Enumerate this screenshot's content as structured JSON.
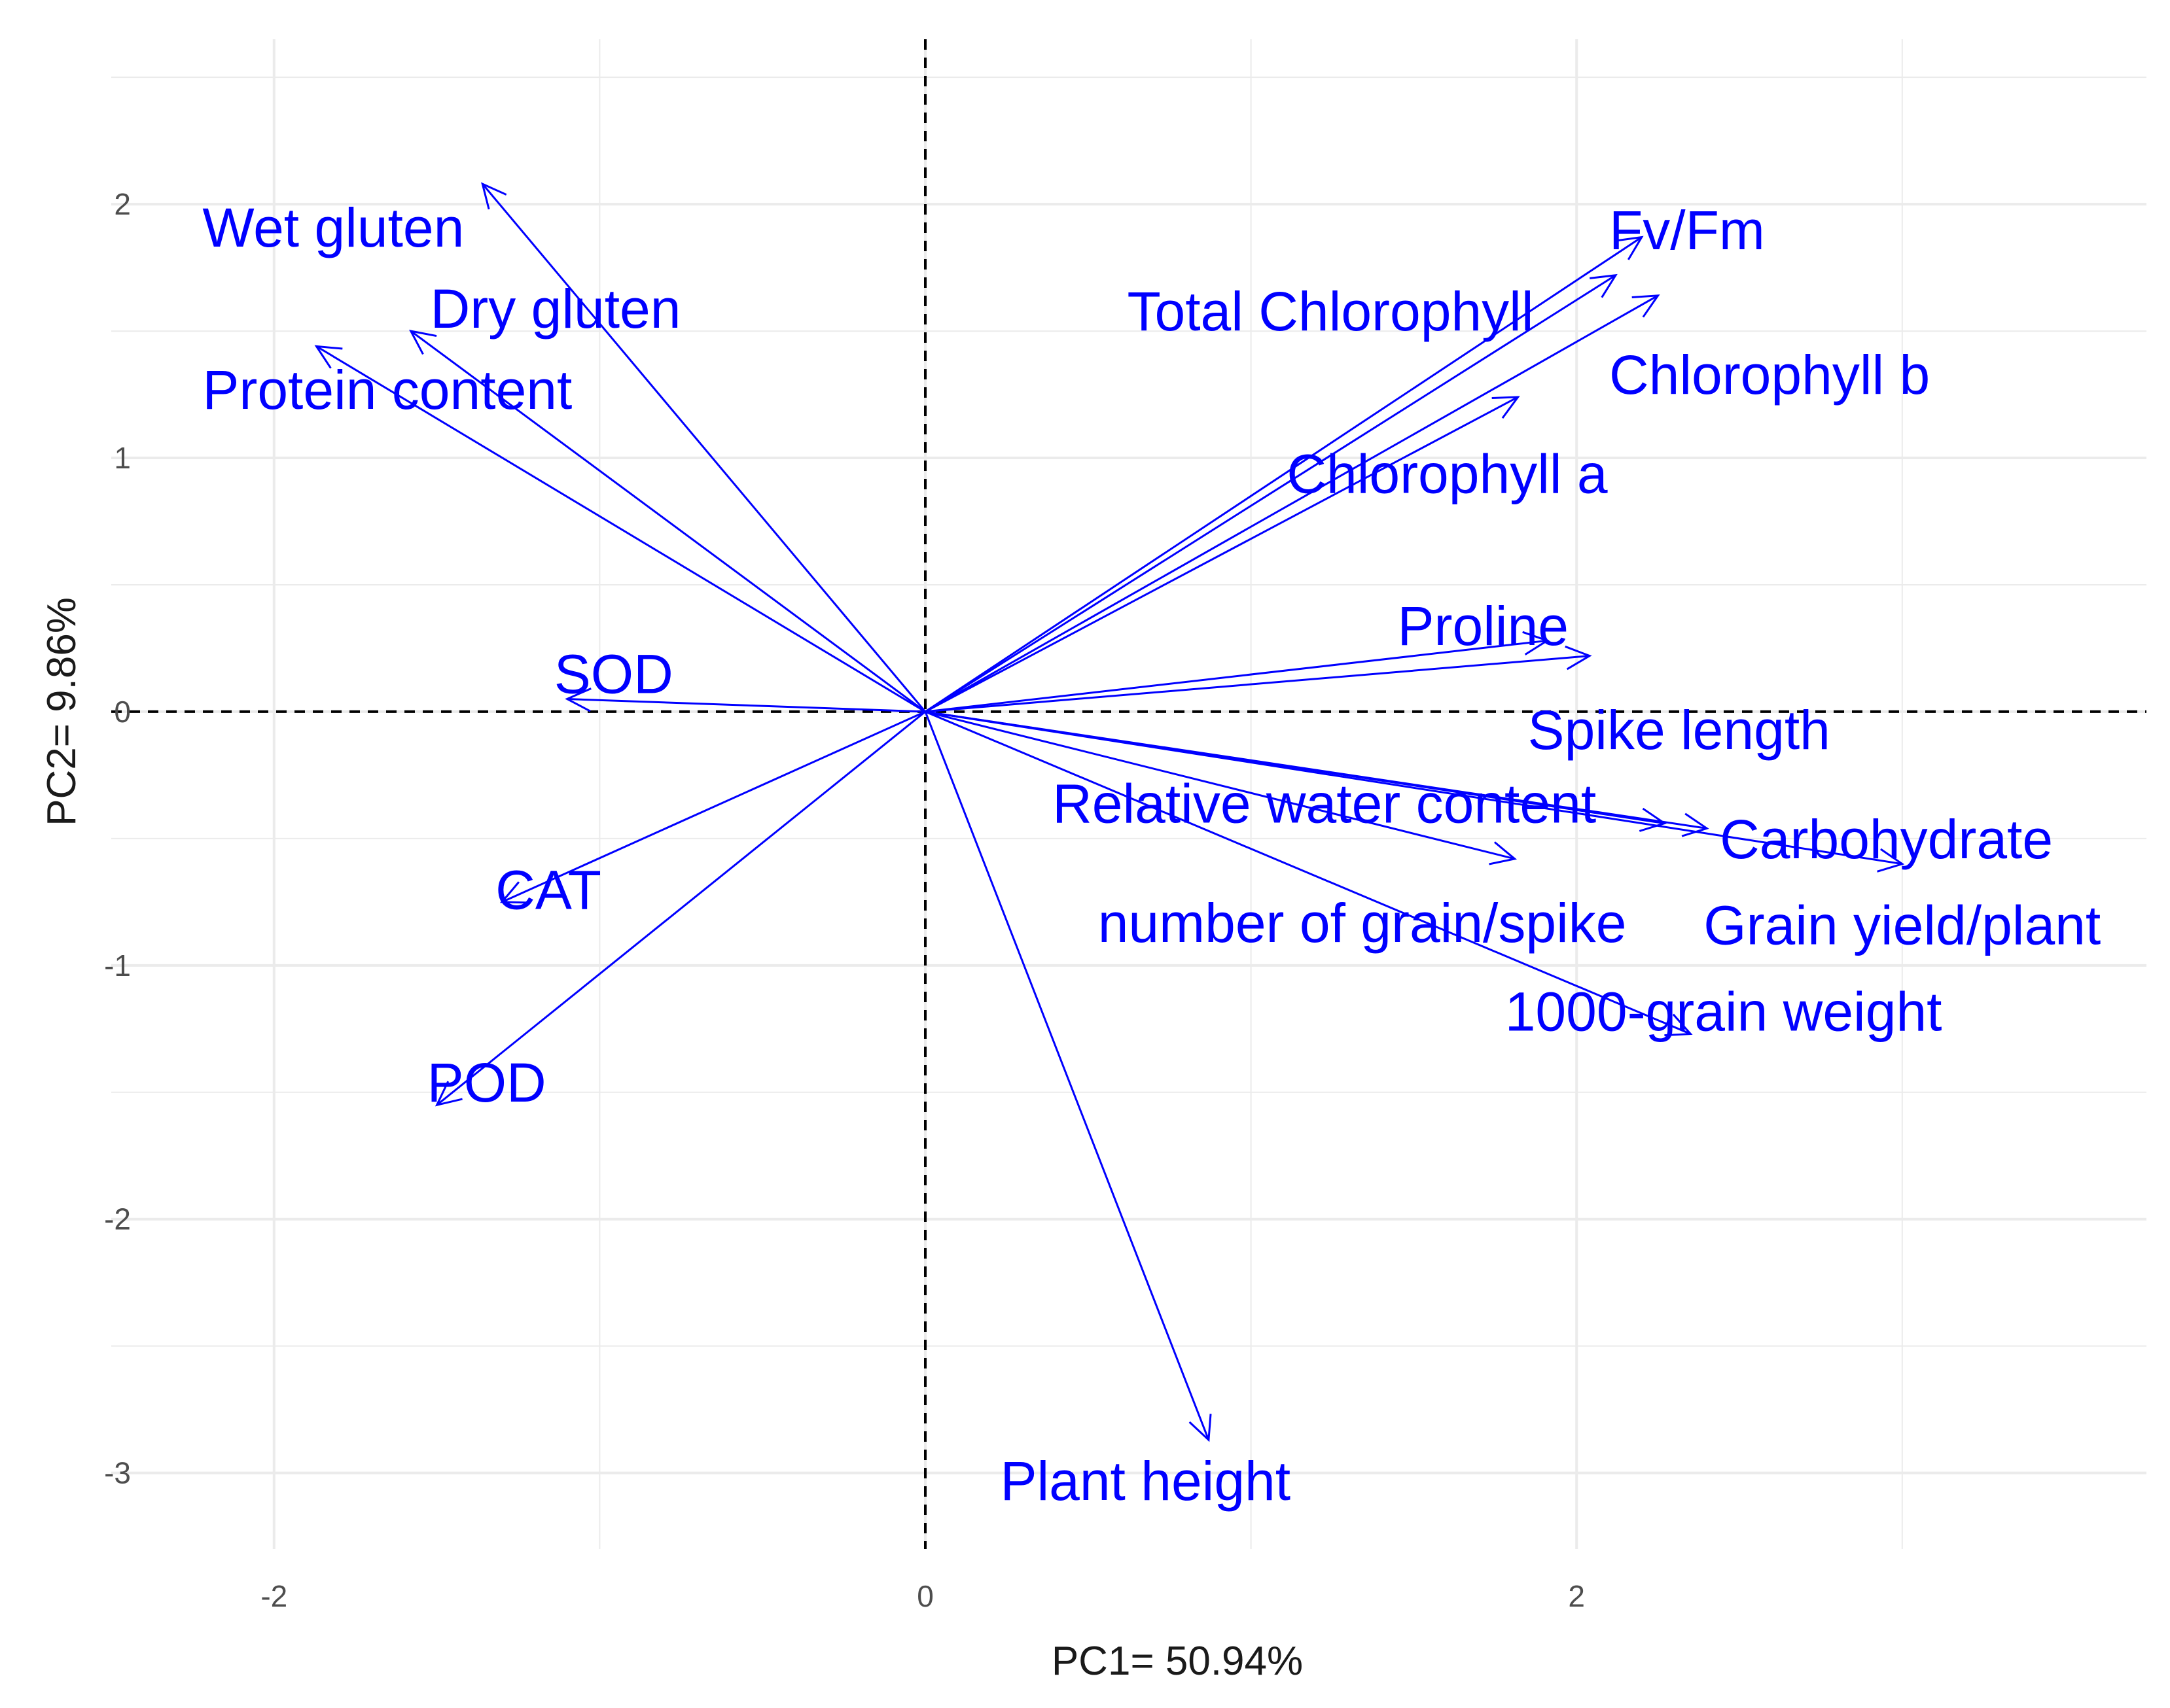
{
  "chart_data": {
    "type": "scatter",
    "subtype": "pca-biplot-loadings",
    "title": "",
    "xlabel": "PC1= 50.94%",
    "ylabel": "PC2= 9.86%",
    "xlim": [
      -2.5,
      3.75
    ],
    "ylim": [
      -3.3,
      2.65
    ],
    "x_ticks": [
      -2,
      0,
      2
    ],
    "x_tick_labels": [
      "-2",
      "0",
      "2"
    ],
    "y_ticks": [
      -3,
      -2,
      -1,
      0,
      1,
      2
    ],
    "y_tick_labels": [
      "-3",
      "-2",
      "-1",
      "0",
      "1",
      "2"
    ],
    "grid": true,
    "reference_lines": {
      "x": 0,
      "y": 0,
      "style": "dashed"
    },
    "arrow_color": "#0000ff",
    "label_color": "#0000ff",
    "variables": [
      {
        "name": "Wet gluten",
        "x": -1.36,
        "y": 2.08,
        "label_x": -2.22,
        "label_y": 1.89
      },
      {
        "name": "Dry gluten",
        "x": -1.58,
        "y": 1.5,
        "label_x": -1.52,
        "label_y": 1.57
      },
      {
        "name": "Protein content",
        "x": -1.87,
        "y": 1.44,
        "label_x": -2.22,
        "label_y": 1.25
      },
      {
        "name": "SOD",
        "x": -1.1,
        "y": 0.05,
        "label_x": -1.14,
        "label_y": 0.13
      },
      {
        "name": "CAT",
        "x": -1.3,
        "y": -0.75,
        "label_x": -1.32,
        "label_y": -0.72
      },
      {
        "name": "POD",
        "x": -1.5,
        "y": -1.55,
        "label_x": -1.53,
        "label_y": -1.48
      },
      {
        "name": "Fv/Fm",
        "x": 2.2,
        "y": 1.87,
        "label_x": 2.1,
        "label_y": 1.88
      },
      {
        "name": "Total Chlorophyll",
        "x": 2.12,
        "y": 1.72,
        "label_x": 0.62,
        "label_y": 1.56
      },
      {
        "name": "Chlorophyll b",
        "x": 2.25,
        "y": 1.64,
        "label_x": 2.1,
        "label_y": 1.31
      },
      {
        "name": "Chlorophyll a",
        "x": 1.82,
        "y": 1.24,
        "label_x": 1.11,
        "label_y": 0.92
      },
      {
        "name": "Proline",
        "x": 1.91,
        "y": 0.28,
        "label_x": 1.45,
        "label_y": 0.32
      },
      {
        "name": "Spike length",
        "x": 2.04,
        "y": 0.22,
        "label_x": 1.85,
        "label_y": -0.09
      },
      {
        "name": "Relative water content",
        "x": 2.27,
        "y": -0.44,
        "label_x": 0.39,
        "label_y": -0.38
      },
      {
        "name": "Carbohydrate",
        "x": 2.4,
        "y": -0.46,
        "label_x": 2.44,
        "label_y": -0.52
      },
      {
        "name": "Grain yield/plant",
        "x": 3.0,
        "y": -0.6,
        "label_x": 2.39,
        "label_y": -0.86
      },
      {
        "name": "number of grain/spike",
        "x": 1.81,
        "y": -0.58,
        "label_x": 0.53,
        "label_y": -0.85
      },
      {
        "name": "1000-grain weight",
        "x": 2.35,
        "y": -1.27,
        "label_x": 1.78,
        "label_y": -1.2
      },
      {
        "name": "Plant height",
        "x": 0.87,
        "y": -2.87,
        "label_x": 0.23,
        "label_y": -3.05
      }
    ]
  }
}
